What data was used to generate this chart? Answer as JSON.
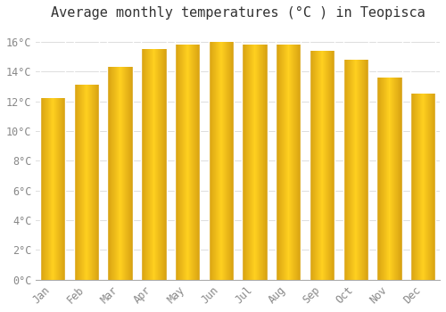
{
  "title": "Average monthly temperatures (°C ) in Teopisca",
  "months": [
    "Jan",
    "Feb",
    "Mar",
    "Apr",
    "May",
    "Jun",
    "Jul",
    "Aug",
    "Sep",
    "Oct",
    "Nov",
    "Dec"
  ],
  "values": [
    12.2,
    13.1,
    14.3,
    15.5,
    15.8,
    16.0,
    15.8,
    15.8,
    15.4,
    14.8,
    13.6,
    12.5
  ],
  "bar_color_light": "#FFD060",
  "bar_color_dark": "#FFA500",
  "background_color": "#FFFFFF",
  "grid_color": "#DDDDDD",
  "ytick_labels": [
    "0°C",
    "2°C",
    "4°C",
    "6°C",
    "8°C",
    "10°C",
    "12°C",
    "14°C",
    "16°C"
  ],
  "ytick_values": [
    0,
    2,
    4,
    6,
    8,
    10,
    12,
    14,
    16
  ],
  "ylim": [
    0,
    17.0
  ],
  "title_fontsize": 11,
  "tick_fontsize": 8.5,
  "title_color": "#333333",
  "tick_color": "#888888",
  "bar_width": 0.75
}
